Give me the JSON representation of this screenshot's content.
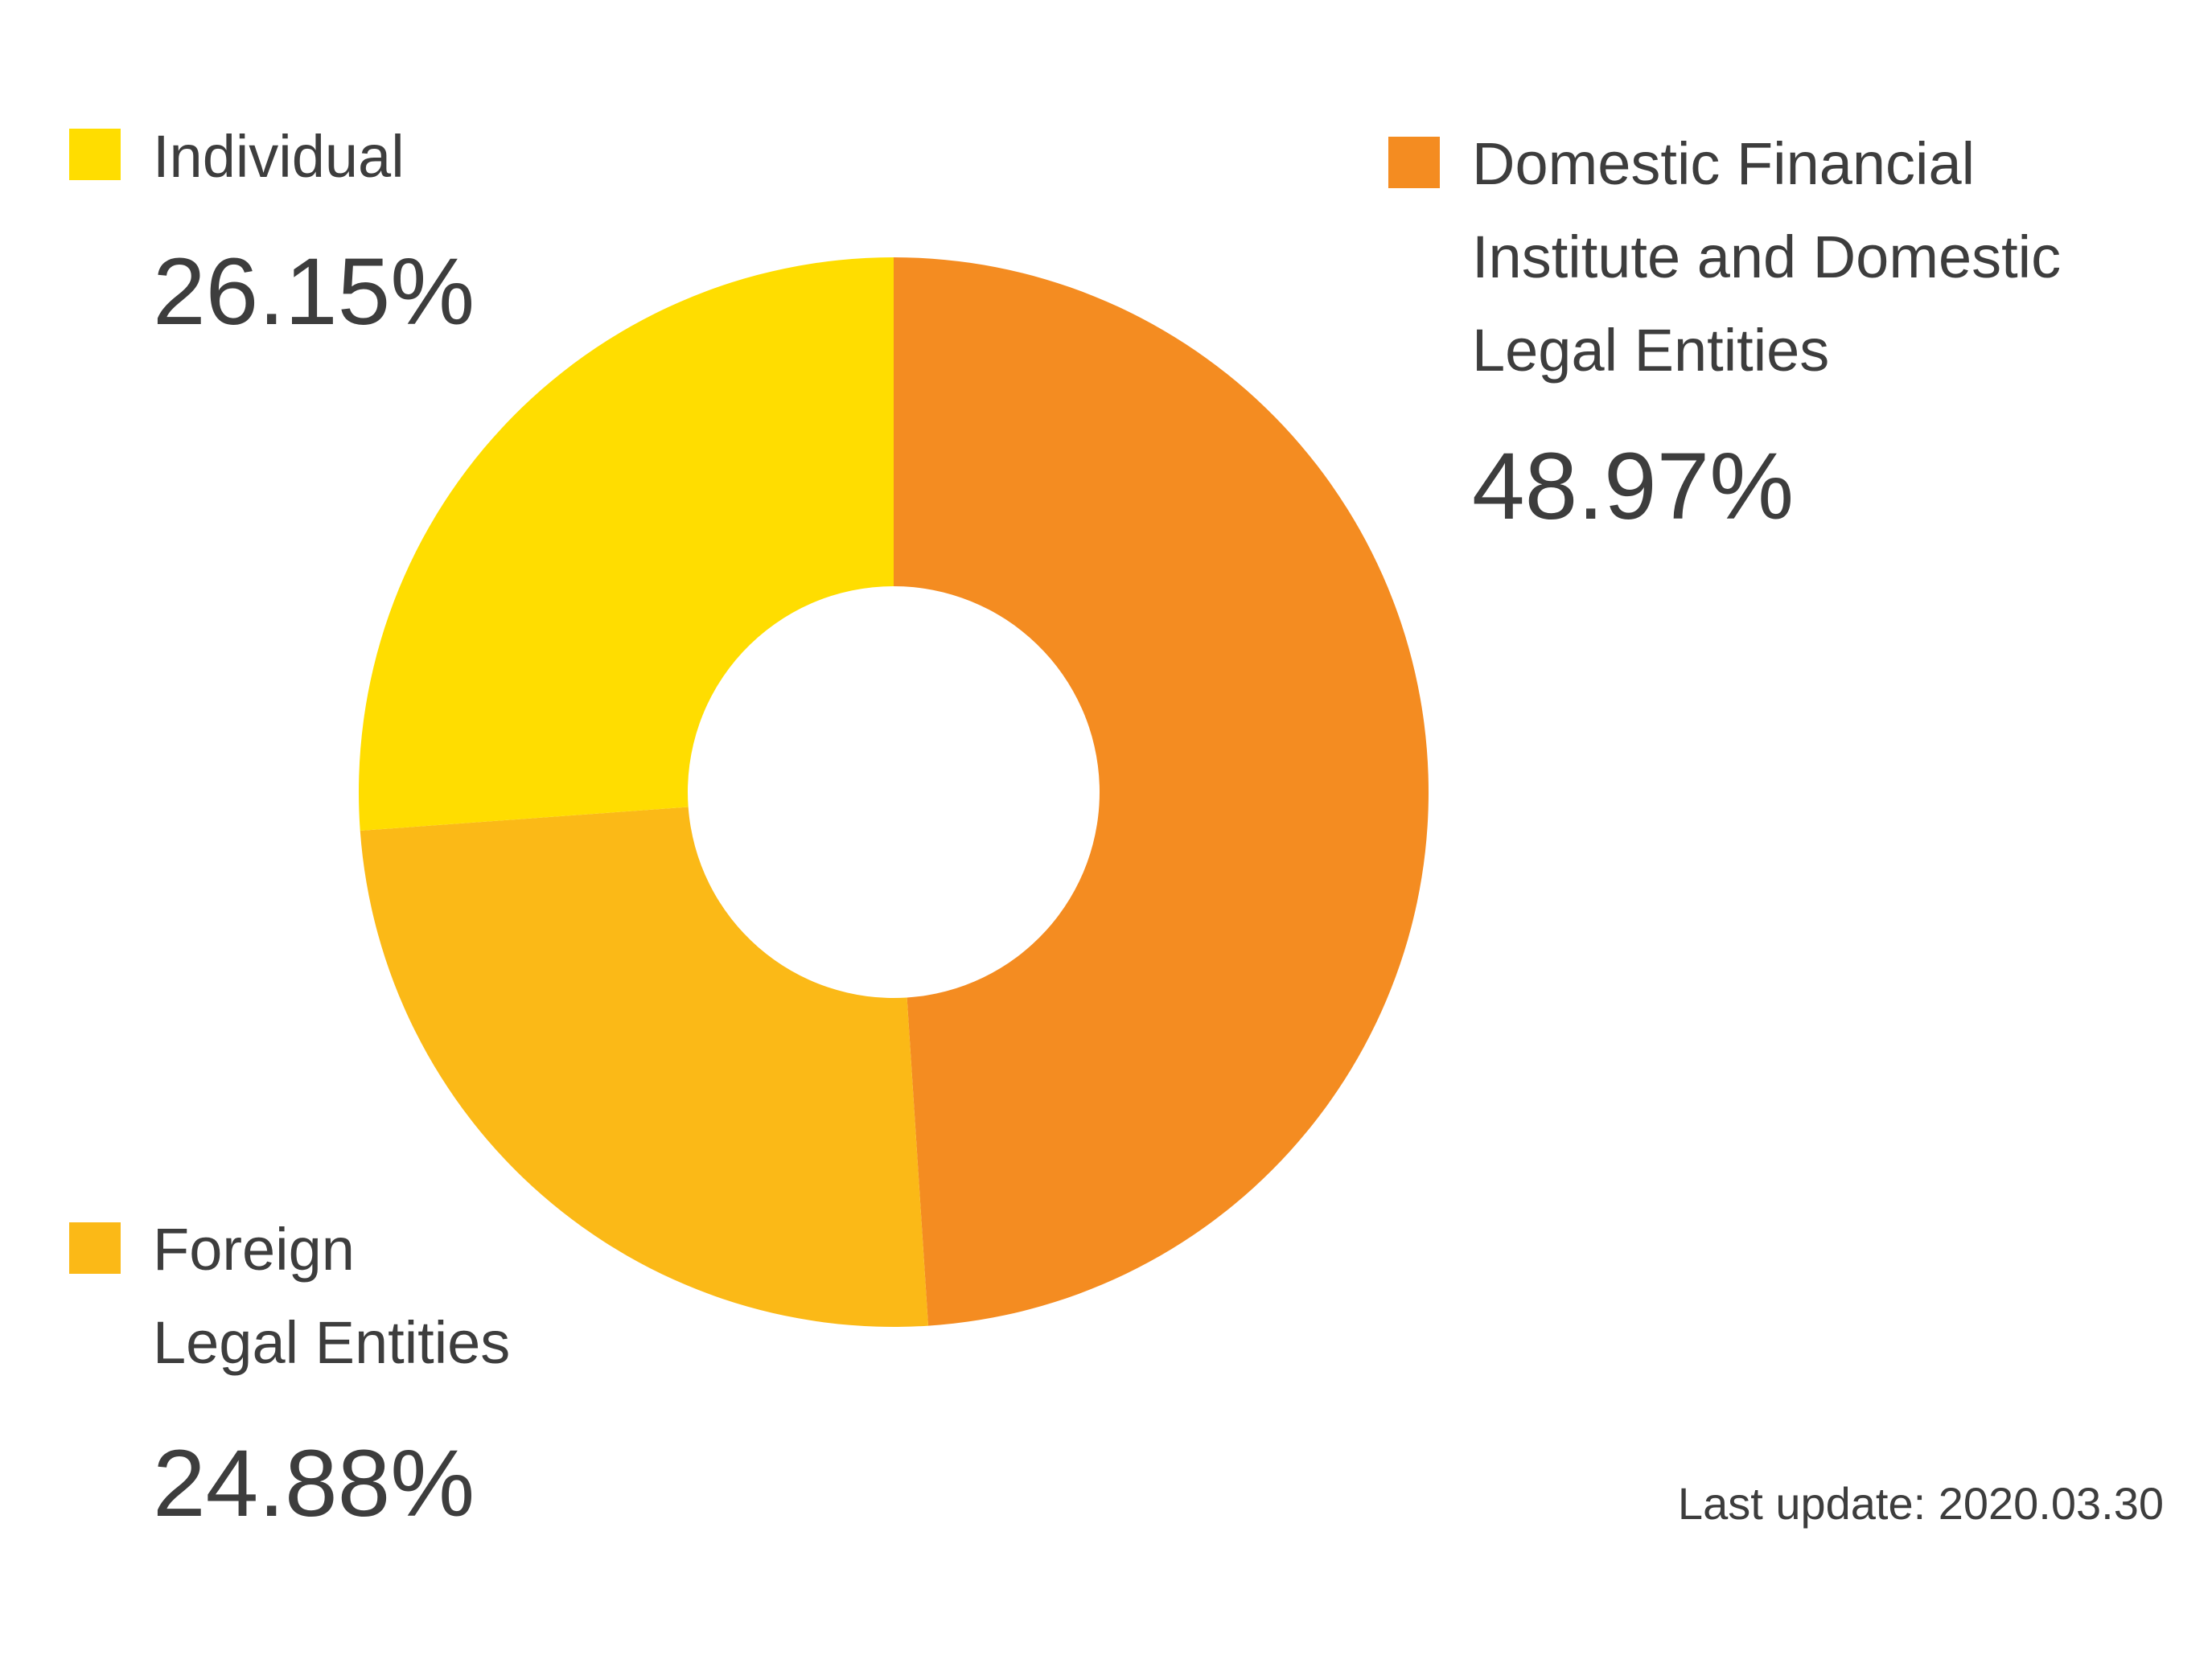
{
  "chart_data": {
    "type": "pie",
    "style": "donut",
    "slices": [
      {
        "label_lines": [
          "Domestic Financial",
          "Institute and Domestic",
          "Legal Entities"
        ],
        "value": 48.97,
        "value_text": "48.97%",
        "color": "#F48C21"
      },
      {
        "label_lines": [
          "Foreign",
          "Legal Entities"
        ],
        "value": 24.88,
        "value_text": "24.88%",
        "color": "#FBB917"
      },
      {
        "label_lines": [
          "Individual"
        ],
        "value": 26.15,
        "value_text": "26.15%",
        "color": "#FFDD00"
      }
    ],
    "start_angle_deg": 0,
    "direction": "clockwise",
    "legend": "labels placed around the donut with colored square markers",
    "footnote": "Last update: 2020.03.30"
  }
}
